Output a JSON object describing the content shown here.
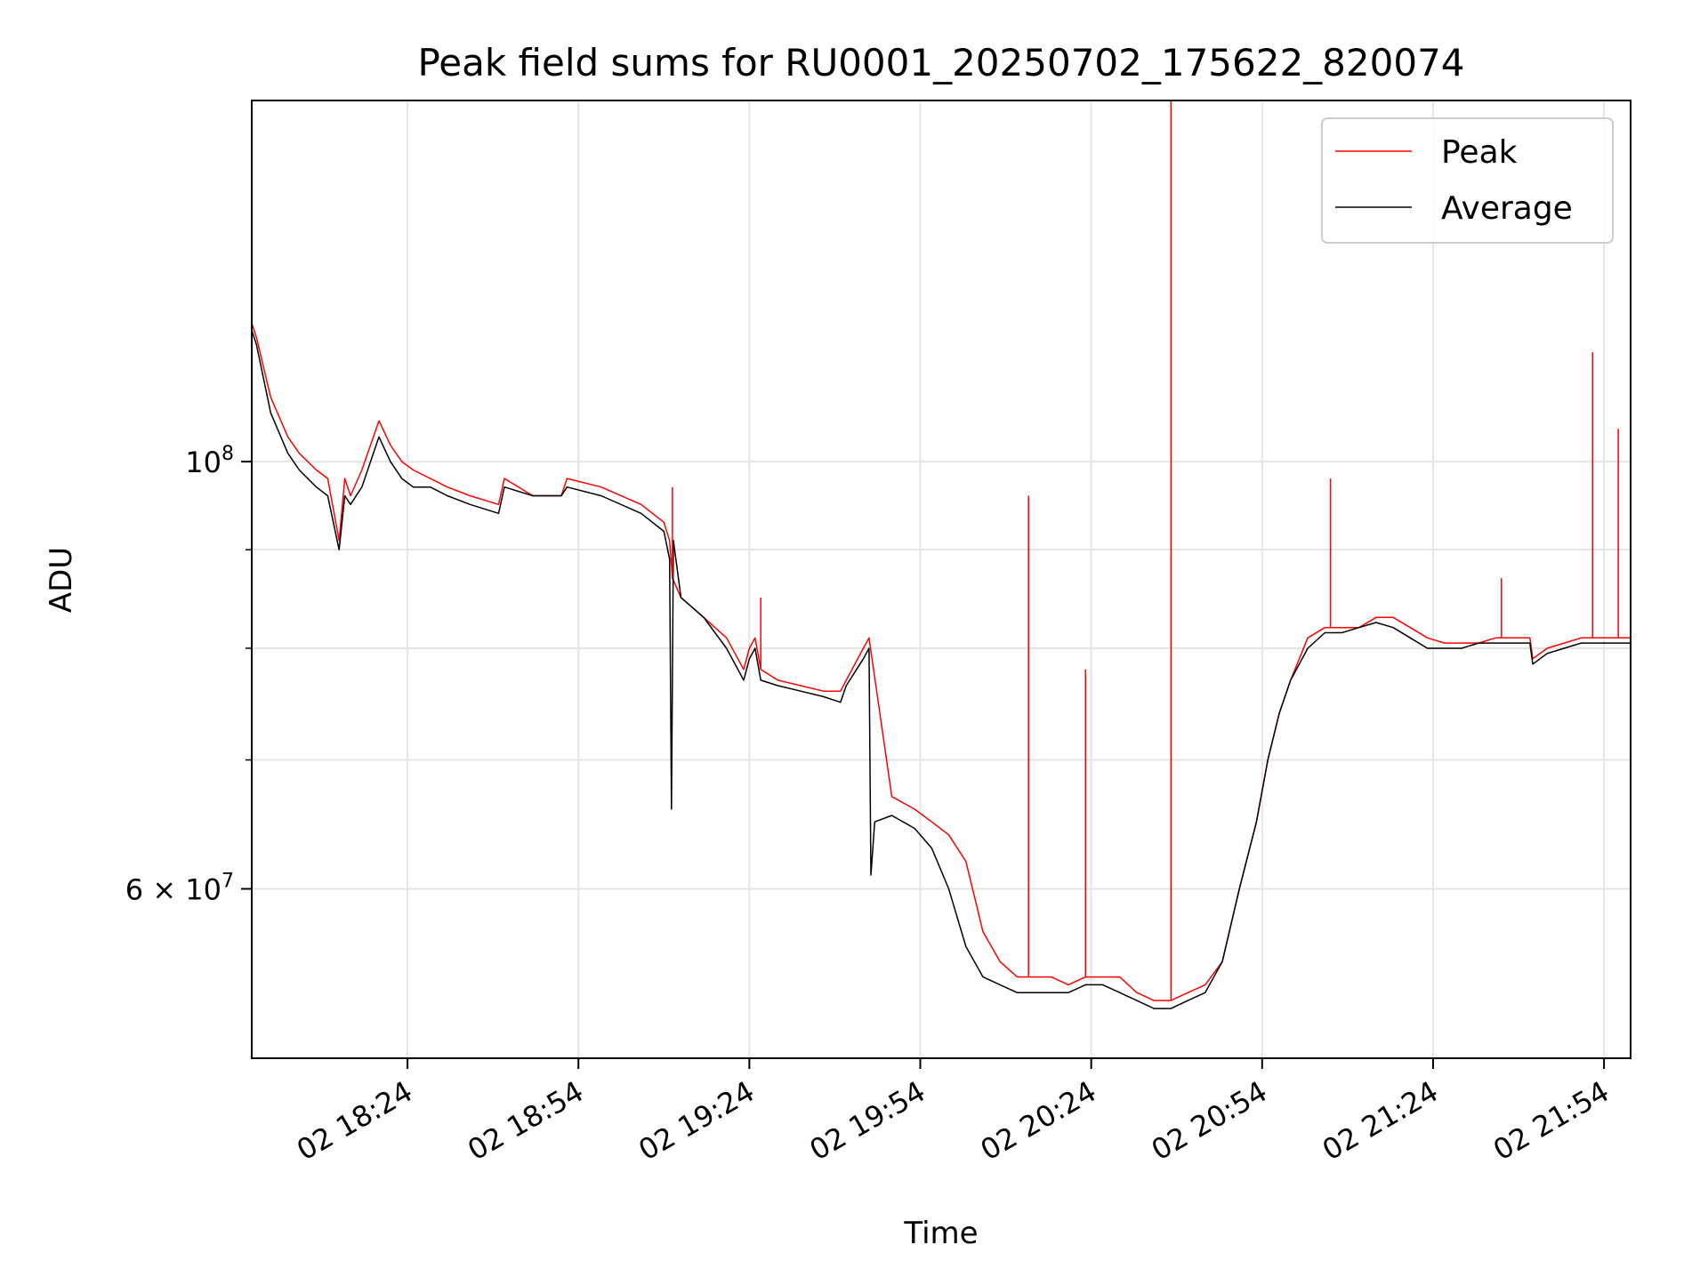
{
  "chart_data": {
    "type": "line",
    "title": "Peak field sums for RU0001_20250702_175622_820074",
    "xlabel": "Time",
    "ylabel": "ADU",
    "x_tick_labels": [
      "02 18:24",
      "02 18:54",
      "02 19:24",
      "02 19:54",
      "02 20:24",
      "02 20:54",
      "02 21:24",
      "02 21:54"
    ],
    "y_tick_labels": [
      {
        "value": 100000000,
        "base": "10",
        "exp": "8",
        "prefix": ""
      },
      {
        "value": 60000000,
        "base": "10",
        "exp": "7",
        "prefix": "6 × "
      }
    ],
    "y_minor_ticks": [
      70000000,
      80000000,
      90000000
    ],
    "ylim": [
      49000000,
      154000000
    ],
    "xlim": [
      "2025-07-02 17:56:40",
      "2025-07-02 21:58:40"
    ],
    "y_scale": "log",
    "grid": true,
    "legend_position": "top-right",
    "colors": {
      "Peak": "#ff0000",
      "Average": "#000000"
    },
    "series": [
      {
        "name": "Peak",
        "x": [
          "2025-07-02 17:56:40",
          "2025-07-02 17:57:30",
          "2025-07-02 18:00:00",
          "2025-07-02 18:03:00",
          "2025-07-02 18:05:00",
          "2025-07-02 18:08:00",
          "2025-07-02 18:10:00",
          "2025-07-02 18:12:00",
          "2025-07-02 18:13:00",
          "2025-07-02 18:14:00",
          "2025-07-02 18:16:00",
          "2025-07-02 18:19:00",
          "2025-07-02 18:21:00",
          "2025-07-02 18:23:00",
          "2025-07-02 18:25:00",
          "2025-07-02 18:28:00",
          "2025-07-02 18:31:00",
          "2025-07-02 18:35:00",
          "2025-07-02 18:40:00",
          "2025-07-02 18:41:00",
          "2025-07-02 18:46:00",
          "2025-07-02 18:51:00",
          "2025-07-02 18:52:00",
          "2025-07-02 18:58:00",
          "2025-07-02 19:05:00",
          "2025-07-02 19:09:00",
          "2025-07-02 19:10:00",
          "2025-07-02 19:10:30",
          "2025-07-02 19:12:00",
          "2025-07-02 19:16:00",
          "2025-07-02 19:20:00",
          "2025-07-02 19:23:00",
          "2025-07-02 19:24:00",
          "2025-07-02 19:25:00",
          "2025-07-02 19:26:00",
          "2025-07-02 19:29:00",
          "2025-07-02 19:33:00",
          "2025-07-02 19:37:00",
          "2025-07-02 19:40:00",
          "2025-07-02 19:41:00",
          "2025-07-02 19:44:00",
          "2025-07-02 19:45:00",
          "2025-07-02 19:49:00",
          "2025-07-02 19:53:00",
          "2025-07-02 19:56:00",
          "2025-07-02 19:59:00",
          "2025-07-02 20:02:00",
          "2025-07-02 20:05:00",
          "2025-07-02 20:08:00",
          "2025-07-02 20:11:00",
          "2025-07-02 20:14:00",
          "2025-07-02 20:17:00",
          "2025-07-02 20:20:00",
          "2025-07-02 20:23:00",
          "2025-07-02 20:26:00",
          "2025-07-02 20:29:00",
          "2025-07-02 20:32:00",
          "2025-07-02 20:35:00",
          "2025-07-02 20:38:00",
          "2025-07-02 20:41:00",
          "2025-07-02 20:44:00",
          "2025-07-02 20:47:00",
          "2025-07-02 20:50:00",
          "2025-07-02 20:53:00",
          "2025-07-02 20:55:00",
          "2025-07-02 20:57:00",
          "2025-07-02 20:59:00",
          "2025-07-02 21:02:00",
          "2025-07-02 21:05:00",
          "2025-07-02 21:08:00",
          "2025-07-02 21:11:00",
          "2025-07-02 21:14:00",
          "2025-07-02 21:17:00",
          "2025-07-02 21:20:00",
          "2025-07-02 21:23:00",
          "2025-07-02 21:26:00",
          "2025-07-02 21:29:00",
          "2025-07-02 21:32:00",
          "2025-07-02 21:35:00",
          "2025-07-02 21:38:00",
          "2025-07-02 21:41:00",
          "2025-07-02 21:41:30",
          "2025-07-02 21:44:00",
          "2025-07-02 21:47:00",
          "2025-07-02 21:50:00",
          "2025-07-02 21:53:00",
          "2025-07-02 21:56:00",
          "2025-07-02 21:58:40"
        ],
        "y": [
          118000000,
          116000000,
          108000000,
          103000000,
          101000000,
          99000000,
          98000000,
          91000000,
          98000000,
          96000000,
          99000000,
          105000000,
          102000000,
          100000000,
          99000000,
          98000000,
          97000000,
          96000000,
          95000000,
          98000000,
          96000000,
          96000000,
          98000000,
          97000000,
          95000000,
          93000000,
          91000000,
          87000000,
          85000000,
          83000000,
          81000000,
          78000000,
          80000000,
          81000000,
          78000000,
          77000000,
          76500000,
          76000000,
          76000000,
          77000000,
          80000000,
          81000000,
          67000000,
          66000000,
          65000000,
          64000000,
          62000000,
          57000000,
          55000000,
          54000000,
          54000000,
          54000000,
          53500000,
          54000000,
          54000000,
          54000000,
          53000000,
          52500000,
          52500000,
          53000000,
          53500000,
          55000000,
          60000000,
          65000000,
          70000000,
          74000000,
          77000000,
          81000000,
          82000000,
          82000000,
          82000000,
          83000000,
          83000000,
          82000000,
          81000000,
          80500000,
          80500000,
          80500000,
          81000000,
          81000000,
          81000000,
          79000000,
          80000000,
          80500000,
          81000000,
          81000000,
          81000000,
          81000000
        ]
      },
      {
        "name": "Average",
        "x": [
          "2025-07-02 17:56:40",
          "2025-07-02 17:57:30",
          "2025-07-02 18:00:00",
          "2025-07-02 18:03:00",
          "2025-07-02 18:05:00",
          "2025-07-02 18:08:00",
          "2025-07-02 18:10:00",
          "2025-07-02 18:12:00",
          "2025-07-02 18:13:00",
          "2025-07-02 18:14:00",
          "2025-07-02 18:16:00",
          "2025-07-02 18:19:00",
          "2025-07-02 18:21:00",
          "2025-07-02 18:23:00",
          "2025-07-02 18:25:00",
          "2025-07-02 18:28:00",
          "2025-07-02 18:31:00",
          "2025-07-02 18:35:00",
          "2025-07-02 18:40:00",
          "2025-07-02 18:41:00",
          "2025-07-02 18:46:00",
          "2025-07-02 18:51:00",
          "2025-07-02 18:52:00",
          "2025-07-02 18:58:00",
          "2025-07-02 19:05:00",
          "2025-07-02 19:09:00",
          "2025-07-02 19:10:00",
          "2025-07-02 19:10:20",
          "2025-07-02 19:10:40",
          "2025-07-02 19:12:00",
          "2025-07-02 19:16:00",
          "2025-07-02 19:20:00",
          "2025-07-02 19:23:00",
          "2025-07-02 19:24:00",
          "2025-07-02 19:25:00",
          "2025-07-02 19:26:00",
          "2025-07-02 19:29:00",
          "2025-07-02 19:33:00",
          "2025-07-02 19:37:00",
          "2025-07-02 19:40:00",
          "2025-07-02 19:41:00",
          "2025-07-02 19:44:00",
          "2025-07-02 19:45:00",
          "2025-07-02 19:45:20",
          "2025-07-02 19:46:00",
          "2025-07-02 19:49:00",
          "2025-07-02 19:53:00",
          "2025-07-02 19:56:00",
          "2025-07-02 19:59:00",
          "2025-07-02 20:02:00",
          "2025-07-02 20:05:00",
          "2025-07-02 20:08:00",
          "2025-07-02 20:11:00",
          "2025-07-02 20:14:00",
          "2025-07-02 20:17:00",
          "2025-07-02 20:20:00",
          "2025-07-02 20:23:00",
          "2025-07-02 20:26:00",
          "2025-07-02 20:29:00",
          "2025-07-02 20:32:00",
          "2025-07-02 20:35:00",
          "2025-07-02 20:38:00",
          "2025-07-02 20:41:00",
          "2025-07-02 20:44:00",
          "2025-07-02 20:47:00",
          "2025-07-02 20:50:00",
          "2025-07-02 20:53:00",
          "2025-07-02 20:55:00",
          "2025-07-02 20:57:00",
          "2025-07-02 20:59:00",
          "2025-07-02 21:02:00",
          "2025-07-02 21:05:00",
          "2025-07-02 21:08:00",
          "2025-07-02 21:11:00",
          "2025-07-02 21:14:00",
          "2025-07-02 21:17:00",
          "2025-07-02 21:20:00",
          "2025-07-02 21:23:00",
          "2025-07-02 21:26:00",
          "2025-07-02 21:29:00",
          "2025-07-02 21:32:00",
          "2025-07-02 21:35:00",
          "2025-07-02 21:38:00",
          "2025-07-02 21:41:00",
          "2025-07-02 21:41:30",
          "2025-07-02 21:44:00",
          "2025-07-02 21:47:00",
          "2025-07-02 21:50:00",
          "2025-07-02 21:53:00",
          "2025-07-02 21:56:00",
          "2025-07-02 21:58:40"
        ],
        "y": [
          117000000,
          115000000,
          106000000,
          101000000,
          99000000,
          97000000,
          96000000,
          90000000,
          96000000,
          95000000,
          97000000,
          103000000,
          100000000,
          98000000,
          97000000,
          97000000,
          96000000,
          95000000,
          94000000,
          97000000,
          96000000,
          96000000,
          97000000,
          96000000,
          94000000,
          92000000,
          89000000,
          66000000,
          91000000,
          85000000,
          83000000,
          80000000,
          77000000,
          79000000,
          80000000,
          77000000,
          76500000,
          76000000,
          75500000,
          75000000,
          76500000,
          79000000,
          80000000,
          61000000,
          65000000,
          65500000,
          64500000,
          63000000,
          60000000,
          56000000,
          54000000,
          53500000,
          53000000,
          53000000,
          53000000,
          53000000,
          53500000,
          53500000,
          53000000,
          52500000,
          52000000,
          52000000,
          52500000,
          53000000,
          55000000,
          60000000,
          65000000,
          70000000,
          74000000,
          77000000,
          80000000,
          81500000,
          81500000,
          82000000,
          82500000,
          82000000,
          81000000,
          80000000,
          80000000,
          80000000,
          80500000,
          80500000,
          80500000,
          80500000,
          78500000,
          79500000,
          80000000,
          80500000,
          80500000,
          80500000,
          80500000
        ]
      }
    ],
    "annotations": [
      {
        "series": "Peak",
        "type": "spike",
        "x": "2025-07-02 19:10:30",
        "y": 97000000
      },
      {
        "series": "Peak",
        "type": "spike",
        "x": "2025-07-02 19:26:00",
        "y": 85000000
      },
      {
        "series": "Peak",
        "type": "spike",
        "x": "2025-07-02 20:13:00",
        "y": 96000000
      },
      {
        "series": "Peak",
        "type": "spike",
        "x": "2025-07-02 20:23:00",
        "y": 78000000
      },
      {
        "series": "Peak",
        "type": "spike",
        "x": "2025-07-02 20:38:00",
        "y": 154000000
      },
      {
        "series": "Peak",
        "type": "spike",
        "x": "2025-07-02 21:06:00",
        "y": 98000000
      },
      {
        "series": "Peak",
        "type": "spike",
        "x": "2025-07-02 21:36:00",
        "y": 87000000
      },
      {
        "series": "Peak",
        "type": "spike",
        "x": "2025-07-02 21:52:00",
        "y": 114000000
      },
      {
        "series": "Peak",
        "type": "spike",
        "x": "2025-07-02 21:56:30",
        "y": 104000000
      }
    ]
  }
}
